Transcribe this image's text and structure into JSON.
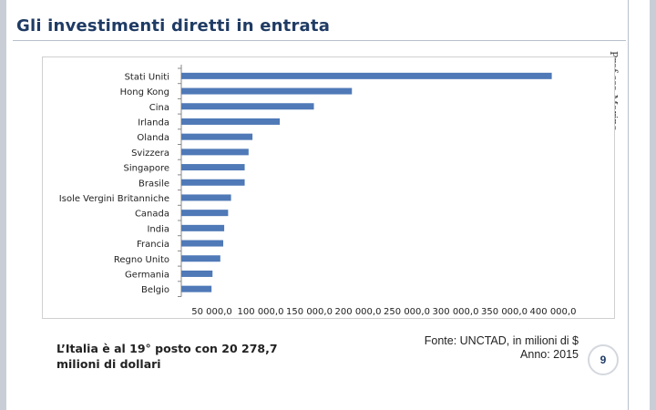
{
  "slide": {
    "title": "Gli investimenti diretti in entrata",
    "vertical_author": "Prof.ssa Marina",
    "note": "L’Italia è al 19° posto con   20 278,7 milioni di dollari",
    "source_line1": "Fonte: UNCTAD, in milioni di $",
    "source_line2": "Anno: 2015",
    "page_number": "9",
    "colors": {
      "title": "#1f3b64",
      "bar": "#4f79b7",
      "side_bar": "#c9ced6"
    }
  },
  "chart_data": {
    "type": "bar",
    "orientation": "horizontal",
    "title": "",
    "xlabel": "",
    "ylabel": "",
    "categories": [
      "Stati Uniti",
      "Hong Kong",
      "Cina",
      "Irlanda",
      "Olanda",
      "Svizzera",
      "Singapore",
      "Brasile",
      "Isole Vergini Britanniche",
      "Canada",
      "India",
      "Francia",
      "Regno Unito",
      "Germania",
      "Belgio"
    ],
    "values": [
      380000,
      175000,
      136000,
      101000,
      73000,
      69000,
      65000,
      65000,
      51000,
      48000,
      44000,
      43000,
      40000,
      32000,
      31000
    ],
    "xlim": [
      0,
      400000
    ],
    "ticks": [
      "50 000,0",
      "100 000,0",
      "150 000,0",
      "200 000,0",
      "250 000,0",
      "300 000,0",
      "350 000,0",
      "400 000,0"
    ],
    "grid": false
  }
}
